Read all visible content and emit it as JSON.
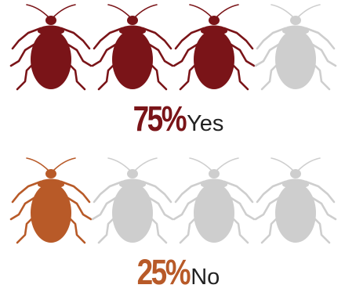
{
  "chart_data": {
    "type": "pictogram",
    "icon": "bedbug-icon",
    "icons_per_row": 4,
    "colors": {
      "yes": "#7a1418",
      "no": "#b85a28",
      "empty": "#cecece",
      "label": "#222222"
    },
    "rows": [
      {
        "key": "yes",
        "percent_label": "75%",
        "label": "Yes",
        "value": 75,
        "filled": 3
      },
      {
        "key": "no",
        "percent_label": "25%",
        "label": "No",
        "value": 25,
        "filled": 1
      }
    ]
  }
}
